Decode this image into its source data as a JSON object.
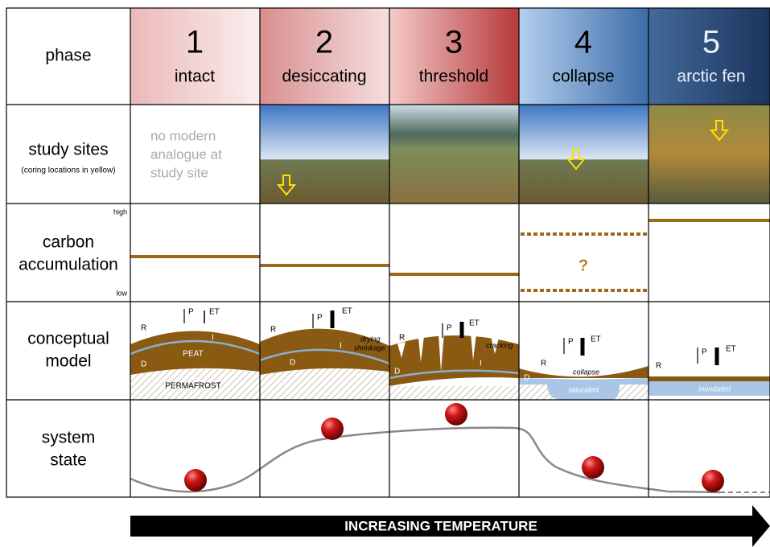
{
  "rows": {
    "phase": "phase",
    "study_sites": {
      "title": "study sites",
      "note": "(coring locations in yellow)"
    },
    "carbon": {
      "title": [
        "carbon",
        "accumulation"
      ],
      "high": "high",
      "low": "low"
    },
    "model": [
      "conceptual",
      "model"
    ],
    "state": [
      "system",
      "state"
    ]
  },
  "phases": [
    {
      "number": "1",
      "name": "intact"
    },
    {
      "number": "2",
      "name": "desiccating"
    },
    {
      "number": "3",
      "name": "threshold"
    },
    {
      "number": "4",
      "name": "collapse"
    },
    {
      "number": "5",
      "name": "arctic fen"
    }
  ],
  "sites": {
    "no_analogue": [
      "no modern",
      "analogue at",
      "study site"
    ]
  },
  "carbon_unknown": "?",
  "model_labels": {
    "R": "R",
    "P": "P",
    "ET": "ET",
    "I": "I",
    "D": "D",
    "peat": "PEAT",
    "permafrost": "PERMAFROST",
    "drying": "drying",
    "shrinkage": "shrinkage",
    "cracking": "cracking",
    "collapse": "collapse",
    "saturated": "saturated",
    "inundated": "inundated"
  },
  "footer": "INCREASING TEMPERATURE"
}
